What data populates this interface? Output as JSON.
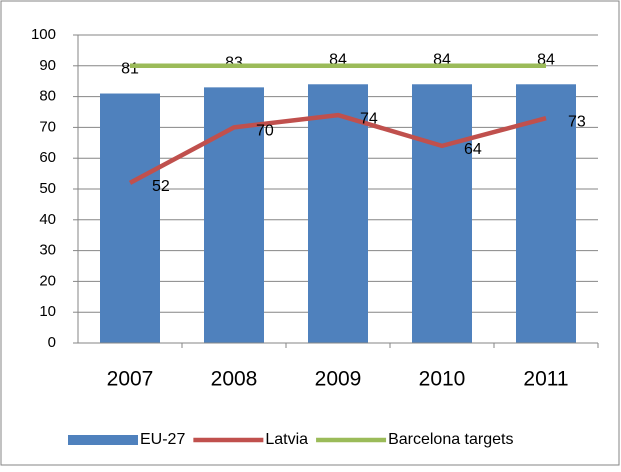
{
  "chart_data": {
    "type": "bar-line",
    "categories": [
      "2007",
      "2008",
      "2009",
      "2010",
      "2011"
    ],
    "series": [
      {
        "name": "EU-27",
        "type": "bar",
        "color": "#4f81bd",
        "values": [
          81,
          83,
          84,
          84,
          84
        ]
      },
      {
        "name": "Latvia",
        "type": "line",
        "color": "#c0504d",
        "values": [
          52,
          70,
          74,
          64,
          73
        ]
      },
      {
        "name": "Barcelona targets",
        "type": "line",
        "color": "#9bbb59",
        "values": [
          90,
          90,
          90,
          90,
          90
        ]
      }
    ],
    "ylim": [
      0,
      100
    ],
    "yticks": [
      0,
      10,
      20,
      30,
      40,
      50,
      60,
      70,
      80,
      90,
      100
    ],
    "grid": true,
    "legend": "bottom"
  }
}
